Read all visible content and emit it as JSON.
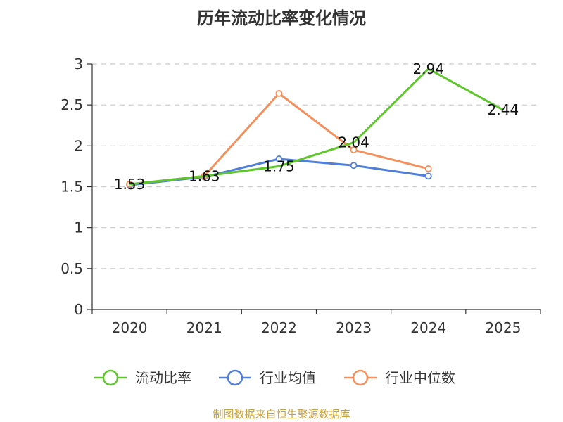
{
  "chart_data": {
    "type": "line",
    "title": "历年流动比率变化情况",
    "categories": [
      "2020",
      "2021",
      "2022",
      "2023",
      "2024",
      "2025"
    ],
    "ylim": [
      0,
      3
    ],
    "yticks": [
      0,
      0.5,
      1,
      1.5,
      2,
      2.5,
      3
    ],
    "ytick_labels": [
      "0",
      "0.5",
      "1",
      "1.5",
      "2",
      "2.5",
      "3"
    ],
    "grid": true,
    "legend_position": "bottom",
    "series": [
      {
        "name": "流动比率",
        "color": "#5ec72c",
        "values": [
          1.53,
          1.63,
          1.75,
          2.04,
          2.94,
          2.44
        ],
        "data_labels": [
          "1.53",
          "1.63",
          "1.75",
          "2.04",
          "2.94",
          "2.44"
        ]
      },
      {
        "name": "行业均值",
        "color": "#4f7fd9",
        "values": [
          1.52,
          1.62,
          1.84,
          1.76,
          1.63,
          null
        ]
      },
      {
        "name": "行业中位数",
        "color": "#f5905c",
        "values": [
          1.53,
          1.63,
          2.64,
          1.95,
          1.72,
          null
        ]
      }
    ]
  },
  "source": {
    "text": "制图数据来自恒生聚源数据库",
    "color": "#c8a03c"
  }
}
